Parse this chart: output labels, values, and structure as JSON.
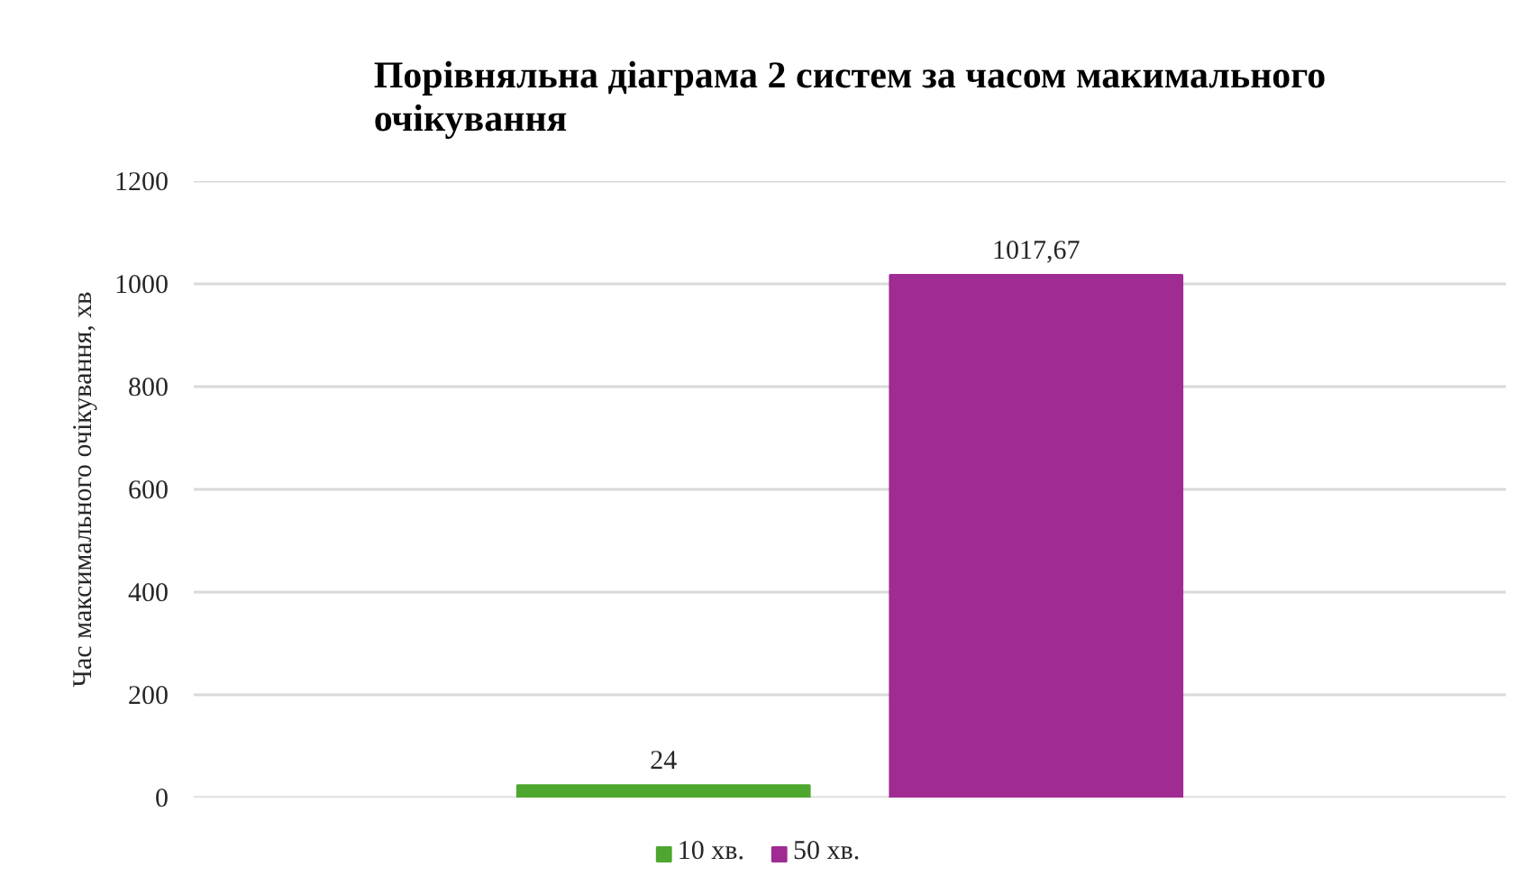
{
  "chart_data": {
    "type": "bar",
    "title": "Порівняльна діаграма 2 систем за часом макимального очікування",
    "ylabel": "Час максимального очікування, хв",
    "categories": [
      null
    ],
    "series": [
      {
        "name": "10 хв.",
        "color": "#4ea72e",
        "values": [
          24
        ],
        "value_labels": [
          "24"
        ]
      },
      {
        "name": "50 хв.",
        "color": "#a02b93",
        "values": [
          1017.67
        ],
        "value_labels": [
          "1017,67"
        ]
      }
    ],
    "ylim": [
      0,
      1200
    ],
    "yticks": [
      0,
      200,
      400,
      600,
      800,
      1000,
      1200
    ],
    "grid": "y",
    "legend": "bottom"
  }
}
